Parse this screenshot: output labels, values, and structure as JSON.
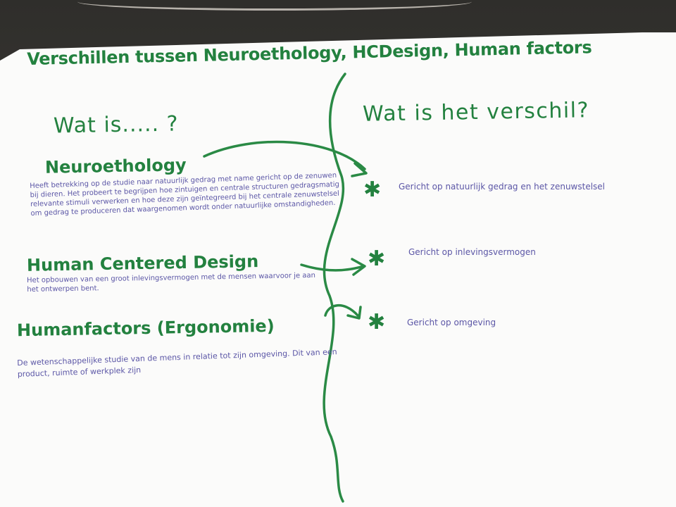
{
  "title": "Verschillen tussen Neuroethology, HCDesign, Human factors",
  "left_heading": "Wat is..... ?",
  "right_heading": "Wat is het verschil?",
  "topics": [
    {
      "name": "Neuroethology",
      "description": "Heeft betrekking op de studie naar natuurlijk gedrag met name gericht op de zenuwen bij dieren. Het probeert te begrijpen hoe zintuigen en centrale structuren gedragsmatig relevante stimuli verwerken en hoe deze zijn geïntegreerd bij het centrale zenuwstelsel om gedrag te produceren dat waargenomen wordt onder natuurlijke omstandigheden.",
      "difference": "Gericht op natuurlijk gedrag en het zenuwstelsel"
    },
    {
      "name": "Human Centered Design",
      "description": "Het opbouwen van een groot inlevingsvermogen met de mensen waarvoor je aan het ontwerpen bent.",
      "difference": "Gericht op inlevingsvermogen"
    },
    {
      "name": "Humanfactors (Ergonomie)",
      "description": "De wetenschappelijke studie van de mens in relatie tot zijn omgeving. Dit van een product, ruimte of werkplek zijn",
      "difference": "Gericht op omgeving"
    }
  ],
  "colors": {
    "marker_green": "#23813f",
    "pen_purple": "#5b56a6",
    "paper": "#fbfbfa"
  },
  "icons": {
    "bullet": "asterisk-icon",
    "connector": "arrow-right-icon"
  }
}
